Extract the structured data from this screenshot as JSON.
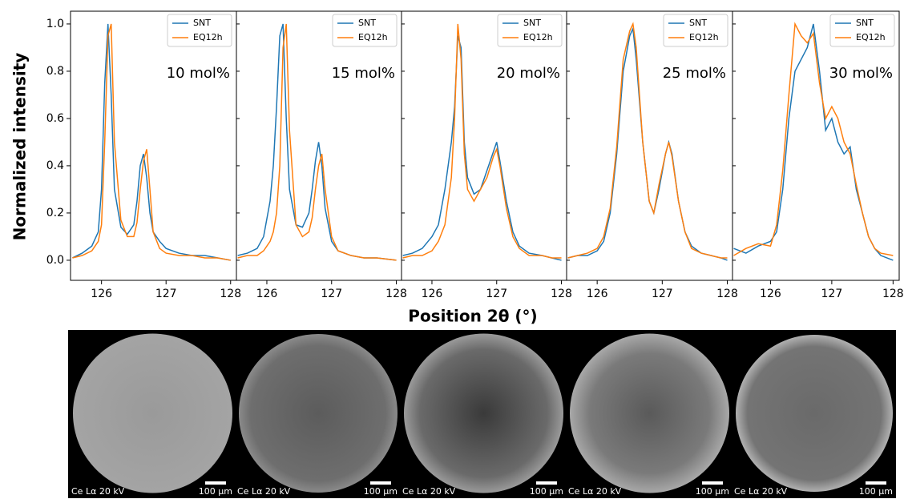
{
  "figure": {
    "ylabel": "Normalized intensity",
    "xlabel": "Position 2θ (°)"
  },
  "chart_data": [
    {
      "type": "line",
      "annotation": "10 mol%",
      "legend": "upper right",
      "x": [
        125.55,
        125.7,
        125.85,
        125.95,
        126.0,
        126.05,
        126.1,
        126.15,
        126.2,
        126.3,
        126.4,
        126.5,
        126.55,
        126.6,
        126.65,
        126.7,
        126.75,
        126.8,
        126.9,
        127.0,
        127.2,
        127.4,
        127.6,
        127.8,
        128.0
      ],
      "series": [
        {
          "name": "SNT",
          "color": "#1f77b4",
          "values": [
            0.01,
            0.03,
            0.06,
            0.12,
            0.3,
            0.75,
            1.0,
            0.7,
            0.3,
            0.14,
            0.11,
            0.15,
            0.25,
            0.4,
            0.45,
            0.35,
            0.2,
            0.12,
            0.08,
            0.05,
            0.03,
            0.02,
            0.02,
            0.01,
            0.0
          ]
        },
        {
          "name": "EQ12h",
          "color": "#ff7f0e",
          "values": [
            0.01,
            0.02,
            0.04,
            0.08,
            0.15,
            0.5,
            0.95,
            1.0,
            0.5,
            0.17,
            0.1,
            0.1,
            0.16,
            0.3,
            0.42,
            0.47,
            0.3,
            0.12,
            0.05,
            0.03,
            0.02,
            0.02,
            0.01,
            0.01,
            0.0
          ]
        }
      ],
      "xlim": [
        125.52,
        128.09
      ],
      "xticks": [
        126,
        127,
        128
      ],
      "ylim": [
        -0.085,
        1.054
      ],
      "yticks": [
        {
          "value": 0,
          "label": "0.0"
        },
        0.2,
        0.4,
        0.6,
        0.8,
        {
          "value": 1,
          "label": "1.0"
        }
      ]
    },
    {
      "type": "line",
      "annotation": "15 mol%",
      "legend": "upper right",
      "x": [
        125.55,
        125.7,
        125.85,
        125.95,
        126.05,
        126.1,
        126.15,
        126.2,
        126.25,
        126.3,
        126.35,
        126.45,
        126.55,
        126.65,
        126.7,
        126.75,
        126.8,
        126.85,
        126.9,
        127.0,
        127.1,
        127.3,
        127.5,
        127.7,
        128.0
      ],
      "series": [
        {
          "name": "SNT",
          "color": "#1f77b4",
          "values": [
            0.02,
            0.03,
            0.05,
            0.1,
            0.25,
            0.4,
            0.65,
            0.95,
            1.0,
            0.6,
            0.3,
            0.15,
            0.14,
            0.2,
            0.3,
            0.42,
            0.5,
            0.4,
            0.22,
            0.08,
            0.04,
            0.02,
            0.01,
            0.01,
            0.0
          ]
        },
        {
          "name": "EQ12h",
          "color": "#ff7f0e",
          "values": [
            0.01,
            0.02,
            0.02,
            0.04,
            0.08,
            0.12,
            0.2,
            0.4,
            0.9,
            1.0,
            0.55,
            0.15,
            0.1,
            0.12,
            0.18,
            0.3,
            0.4,
            0.45,
            0.3,
            0.1,
            0.04,
            0.02,
            0.01,
            0.01,
            0.0
          ]
        }
      ],
      "xlim": [
        125.53,
        128.08
      ],
      "xticks": [
        126,
        127,
        128
      ],
      "ylim": [
        -0.085,
        1.054
      ],
      "yticks": [
        {
          "value": 0,
          "label": "0.0"
        },
        0.2,
        0.4,
        0.6,
        0.8,
        {
          "value": 1,
          "label": "1.0"
        }
      ]
    },
    {
      "type": "line",
      "annotation": "20 mol%",
      "legend": "upper right",
      "x": [
        125.55,
        125.7,
        125.85,
        126.0,
        126.1,
        126.2,
        126.3,
        126.35,
        126.4,
        126.45,
        126.5,
        126.55,
        126.65,
        126.75,
        126.85,
        126.95,
        127.0,
        127.05,
        127.15,
        127.25,
        127.35,
        127.5,
        127.7,
        127.85,
        128.0
      ],
      "series": [
        {
          "name": "SNT",
          "color": "#1f77b4",
          "values": [
            0.02,
            0.03,
            0.05,
            0.1,
            0.15,
            0.3,
            0.5,
            0.65,
            0.95,
            0.9,
            0.5,
            0.35,
            0.28,
            0.3,
            0.38,
            0.46,
            0.5,
            0.42,
            0.25,
            0.12,
            0.06,
            0.03,
            0.02,
            0.01,
            0.0
          ]
        },
        {
          "name": "EQ12h",
          "color": "#ff7f0e",
          "values": [
            0.01,
            0.02,
            0.02,
            0.04,
            0.08,
            0.15,
            0.35,
            0.6,
            1.0,
            0.85,
            0.45,
            0.3,
            0.25,
            0.3,
            0.35,
            0.44,
            0.47,
            0.4,
            0.22,
            0.1,
            0.05,
            0.02,
            0.02,
            0.01,
            0.01
          ]
        }
      ],
      "xlim": [
        125.53,
        128.08
      ],
      "xticks": [
        126,
        127,
        128
      ],
      "ylim": [
        -0.085,
        1.054
      ],
      "yticks": [
        {
          "value": 0,
          "label": "0.0"
        },
        0.2,
        0.4,
        0.6,
        0.8,
        {
          "value": 1,
          "label": "1.0"
        }
      ]
    },
    {
      "type": "line",
      "annotation": "25 mol%",
      "legend": "upper right",
      "x": [
        125.55,
        125.7,
        125.85,
        126.0,
        126.1,
        126.2,
        126.3,
        126.4,
        126.5,
        126.55,
        126.6,
        126.7,
        126.8,
        126.87,
        126.95,
        127.05,
        127.1,
        127.15,
        127.25,
        127.35,
        127.45,
        127.6,
        127.75,
        127.9,
        128.0
      ],
      "series": [
        {
          "name": "SNT",
          "color": "#1f77b4",
          "values": [
            0.01,
            0.02,
            0.02,
            0.04,
            0.08,
            0.2,
            0.45,
            0.8,
            0.95,
            0.98,
            0.85,
            0.5,
            0.25,
            0.2,
            0.3,
            0.45,
            0.5,
            0.45,
            0.25,
            0.12,
            0.06,
            0.03,
            0.02,
            0.01,
            0.0
          ]
        },
        {
          "name": "EQ12h",
          "color": "#ff7f0e",
          "values": [
            0.01,
            0.02,
            0.03,
            0.05,
            0.1,
            0.22,
            0.48,
            0.85,
            0.97,
            1.0,
            0.9,
            0.5,
            0.25,
            0.2,
            0.32,
            0.45,
            0.5,
            0.44,
            0.25,
            0.12,
            0.05,
            0.03,
            0.02,
            0.01,
            0.01
          ]
        }
      ],
      "xlim": [
        125.53,
        128.08
      ],
      "xticks": [
        126,
        127,
        128
      ],
      "ylim": [
        -0.085,
        1.054
      ],
      "yticks": [
        {
          "value": 0,
          "label": "0.0"
        },
        0.2,
        0.4,
        0.6,
        0.8,
        {
          "value": 1,
          "label": "1.0"
        }
      ]
    },
    {
      "type": "line",
      "annotation": "30 mol%",
      "legend": "upper right",
      "x": [
        125.4,
        125.6,
        125.8,
        126.0,
        126.1,
        126.2,
        126.3,
        126.4,
        126.5,
        126.6,
        126.7,
        126.8,
        126.9,
        127.0,
        127.1,
        127.2,
        127.3,
        127.4,
        127.5,
        127.6,
        127.7,
        127.8,
        128.0
      ],
      "series": [
        {
          "name": "SNT",
          "color": "#1f77b4",
          "values": [
            0.05,
            0.03,
            0.06,
            0.08,
            0.12,
            0.3,
            0.6,
            0.8,
            0.85,
            0.9,
            1.0,
            0.8,
            0.55,
            0.6,
            0.5,
            0.45,
            0.48,
            0.3,
            0.2,
            0.1,
            0.05,
            0.02,
            0.0
          ]
        },
        {
          "name": "EQ12h",
          "color": "#ff7f0e",
          "values": [
            0.02,
            0.05,
            0.07,
            0.06,
            0.15,
            0.38,
            0.7,
            1.0,
            0.95,
            0.92,
            0.96,
            0.75,
            0.6,
            0.65,
            0.6,
            0.5,
            0.45,
            0.32,
            0.2,
            0.1,
            0.05,
            0.03,
            0.02
          ]
        }
      ],
      "xlim": [
        125.38,
        128.1
      ],
      "xticks": [
        126,
        127,
        128
      ],
      "ylim": [
        -0.085,
        1.054
      ],
      "yticks": [
        {
          "value": 0,
          "label": "0.0"
        },
        0.2,
        0.4,
        0.6,
        0.8,
        {
          "value": 1,
          "label": "1.0"
        }
      ]
    }
  ],
  "images": [
    {
      "detector_label": "Ce Lα 20 kV",
      "scale_label": "100 µm"
    },
    {
      "detector_label": "Ce Lα 20 kV",
      "scale_label": "100 µm"
    },
    {
      "detector_label": "Ce Lα 20 kV",
      "scale_label": "100 µm"
    },
    {
      "detector_label": "Ce Lα 20 kV",
      "scale_label": "100 µm"
    },
    {
      "detector_label": "Ce Lα 20 kV",
      "scale_label": "100 µm"
    }
  ]
}
